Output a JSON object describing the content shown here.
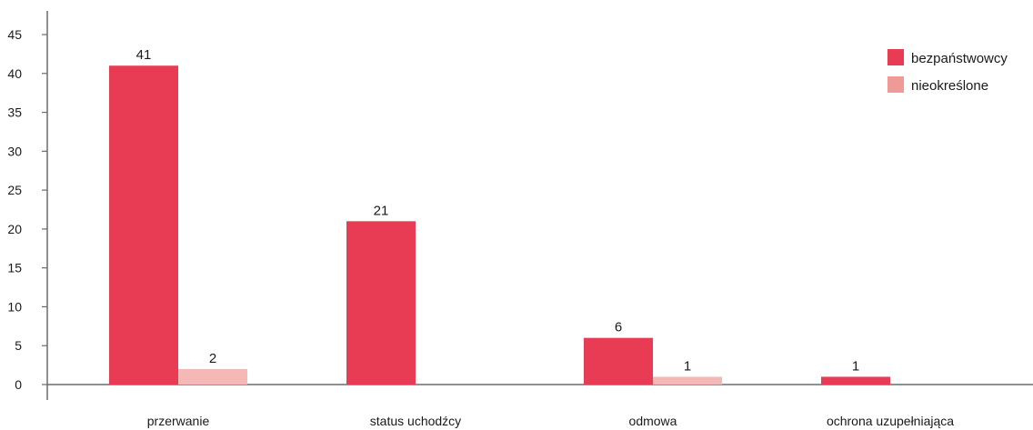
{
  "chart_data": {
    "type": "bar",
    "title": "",
    "xlabel": "",
    "ylabel": "",
    "categories": [
      "przerwanie",
      "status uchodźcy",
      "odmowa",
      "ochrona uzupełniająca"
    ],
    "series": [
      {
        "name": "bezpaństwowcy",
        "values": [
          41,
          21,
          6,
          1
        ],
        "color": "#e83b54",
        "show_labels": [
          true,
          true,
          true,
          true
        ]
      },
      {
        "name": "nieokreślone",
        "values": [
          2,
          0,
          1,
          0
        ],
        "color": "#f4b8b6",
        "legend_color": "#f09a98",
        "show_labels": [
          true,
          false,
          true,
          false
        ]
      }
    ],
    "ylim": [
      0,
      45
    ],
    "yticks": [
      "0",
      "5",
      "10",
      "15",
      "20",
      "25",
      "30",
      "35",
      "40",
      "45"
    ],
    "grid": false,
    "legend_position": "top-right"
  }
}
